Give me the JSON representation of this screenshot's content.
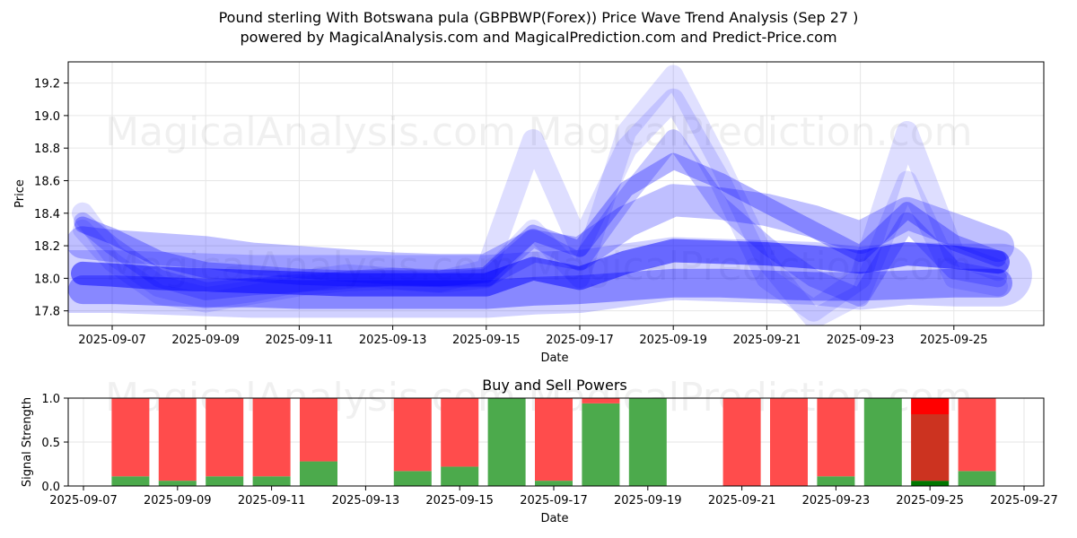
{
  "title_line1": "Pound sterling With Botswana pula (GBPBWP(Forex)) Price Wave Trend Analysis (Sep 27 )",
  "title_line2": "powered by MagicalAnalysis.com and MagicalPrediction.com and Predict-Price.com",
  "watermarks": [
    "MagicalAnalysis.com",
    "MagicalPrediction.com"
  ],
  "colors": {
    "wave": "#0000ff",
    "buy": "#4caa4c",
    "sell": "#ff4c4c",
    "sell_strong": "#ff0000",
    "buy_dark": "#007700"
  },
  "chart_data": [
    {
      "type": "line",
      "title": "",
      "xlabel": "Date",
      "ylabel": "Price",
      "ylim": [
        17.71,
        19.33
      ],
      "xlim": [
        "2025-09-06",
        "2025-09-26"
      ],
      "grid": true,
      "x_ticks": [
        "2025-09-07",
        "2025-09-09",
        "2025-09-11",
        "2025-09-13",
        "2025-09-15",
        "2025-09-17",
        "2025-09-19",
        "2025-09-21",
        "2025-09-23",
        "2025-09-25"
      ],
      "y_ticks": [
        17.8,
        18.0,
        18.2,
        18.4,
        18.6,
        18.8,
        19.0,
        19.2
      ],
      "x": [
        "2025-09-06",
        "2025-09-07",
        "2025-09-08",
        "2025-09-09",
        "2025-09-10",
        "2025-09-11",
        "2025-09-12",
        "2025-09-13",
        "2025-09-14",
        "2025-09-15",
        "2025-09-16",
        "2025-09-17",
        "2025-09-18",
        "2025-09-19",
        "2025-09-20",
        "2025-09-21",
        "2025-09-22",
        "2025-09-23",
        "2025-09-24",
        "2025-09-25",
        "2025-09-26"
      ],
      "series": [
        {
          "values": [
            17.93,
            17.93,
            17.92,
            17.91,
            17.91,
            17.9,
            17.9,
            17.9,
            17.9,
            17.9,
            17.92,
            17.93,
            17.95,
            17.97,
            17.97,
            17.96,
            17.95,
            17.95,
            17.96,
            17.97,
            17.97
          ],
          "width": 32,
          "opacity": 0.35
        },
        {
          "values": [
            18.03,
            18.02,
            18.0,
            17.99,
            17.98,
            17.97,
            17.96,
            17.96,
            17.96,
            17.96,
            18.06,
            18.0,
            18.1,
            18.17,
            18.16,
            18.15,
            18.13,
            18.1,
            18.15,
            18.13,
            18.1
          ],
          "width": 26,
          "opacity": 0.5
        },
        {
          "values": [
            18.22,
            18.2,
            18.18,
            18.16,
            18.12,
            18.1,
            18.08,
            18.06,
            18.05,
            18.05,
            18.2,
            18.15,
            18.35,
            18.48,
            18.46,
            18.42,
            18.35,
            18.25,
            18.4,
            18.3,
            18.2
          ],
          "width": 36,
          "opacity": 0.25
        },
        {
          "values": [
            18.33,
            18.26,
            18.12,
            18.05,
            18.03,
            18.01,
            18.0,
            18.0,
            18.0,
            18.02,
            18.28,
            18.18,
            18.55,
            18.72,
            18.6,
            18.45,
            18.3,
            18.15,
            18.42,
            18.22,
            18.12
          ],
          "width": 18,
          "opacity": 0.3
        },
        {
          "values": [
            18.35,
            18.2,
            18.0,
            17.92,
            17.95,
            17.97,
            17.99,
            18.01,
            18.0,
            18.0,
            18.25,
            18.1,
            18.5,
            18.86,
            18.45,
            18.2,
            18.0,
            17.88,
            18.35,
            18.05,
            18.0
          ],
          "width": 20,
          "opacity": 0.22
        },
        {
          "values": [
            18.4,
            18.15,
            17.95,
            17.88,
            17.92,
            17.98,
            18.02,
            18.0,
            17.98,
            18.05,
            18.85,
            18.2,
            18.8,
            19.1,
            18.6,
            18.0,
            17.8,
            18.0,
            18.9,
            18.15,
            18.05
          ],
          "width": 24,
          "opacity": 0.13
        },
        {
          "values": [
            18.3,
            18.1,
            17.9,
            17.85,
            17.9,
            17.95,
            17.98,
            17.99,
            17.97,
            18.0,
            18.3,
            18.0,
            18.9,
            19.25,
            18.7,
            18.1,
            17.75,
            17.9,
            18.6,
            18.0,
            17.95
          ],
          "width": 22,
          "opacity": 0.12
        }
      ]
    },
    {
      "type": "bar",
      "title": "Buy and Sell Powers",
      "xlabel": "Date",
      "ylabel": "Signal Strength",
      "ylim": [
        0,
        1
      ],
      "xlim": [
        "2025-09-07",
        "2025-09-27"
      ],
      "x_ticks": [
        "2025-09-07",
        "2025-09-09",
        "2025-09-11",
        "2025-09-13",
        "2025-09-15",
        "2025-09-17",
        "2025-09-19",
        "2025-09-21",
        "2025-09-23",
        "2025-09-25",
        "2025-09-27"
      ],
      "y_ticks": [
        "0.0",
        "0.5",
        "1.0"
      ],
      "categories": [
        "2025-09-08",
        "2025-09-09",
        "2025-09-10",
        "2025-09-11",
        "2025-09-12",
        "2025-09-14",
        "2025-09-15",
        "2025-09-16",
        "2025-09-17",
        "2025-09-18",
        "2025-09-19",
        "2025-09-21",
        "2025-09-22",
        "2025-09-23",
        "2025-09-24",
        "2025-09-25",
        "2025-09-26"
      ],
      "series": [
        {
          "name": "Buy",
          "values": [
            0.11,
            0.06,
            0.11,
            0.11,
            0.28,
            0.17,
            0.22,
            1.0,
            0.06,
            0.94,
            1.0,
            0.0,
            0.0,
            0.11,
            1.0,
            0.06,
            0.17
          ]
        },
        {
          "name": "Sell",
          "values": [
            0.89,
            0.94,
            0.89,
            0.89,
            0.72,
            0.83,
            0.78,
            0.0,
            0.94,
            0.06,
            0.0,
            1.0,
            1.0,
            0.89,
            0.0,
            0.94,
            0.83
          ]
        }
      ]
    }
  ]
}
